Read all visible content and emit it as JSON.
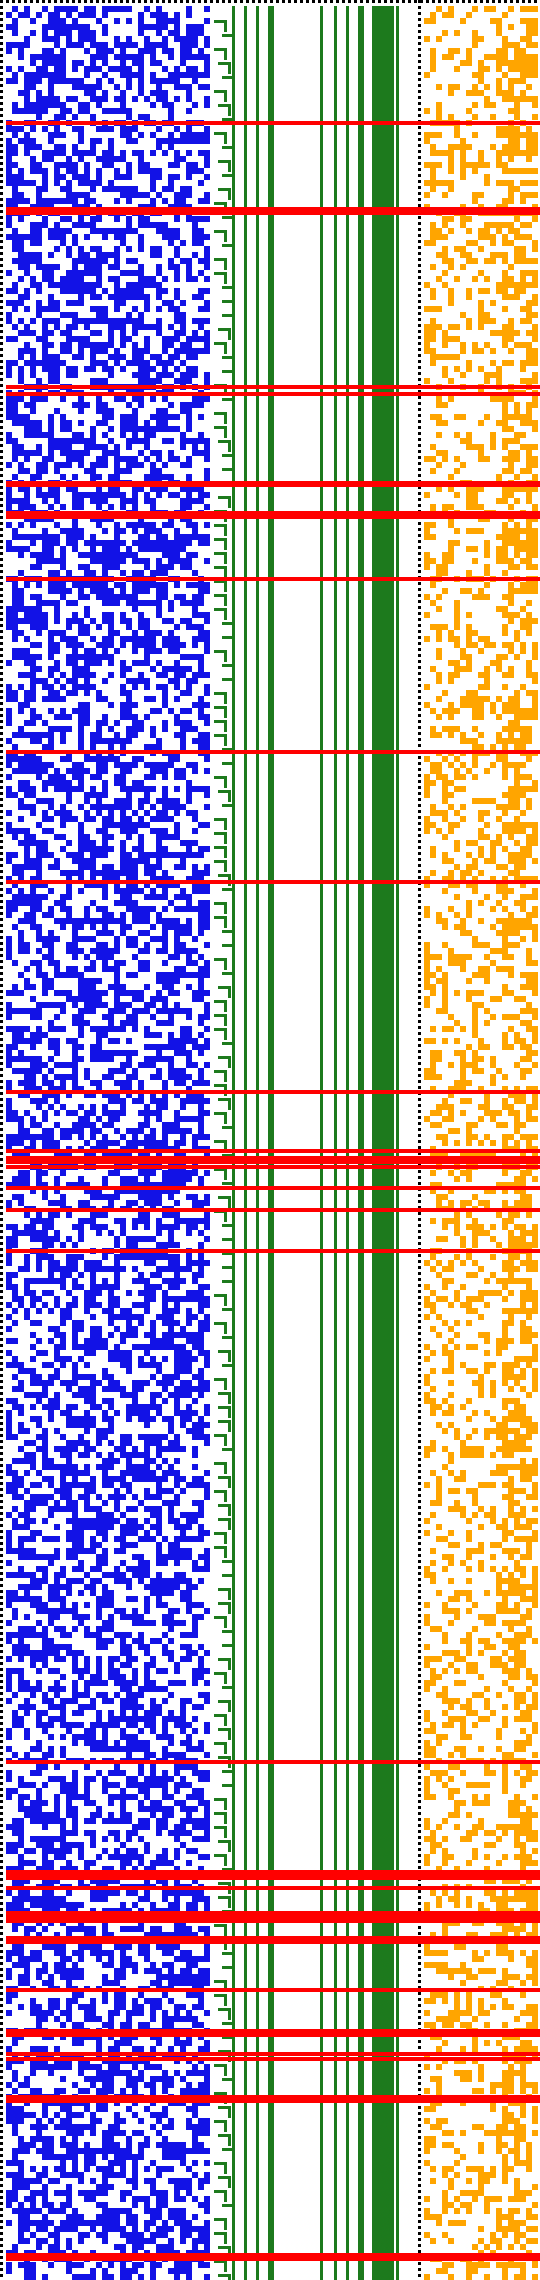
{
  "colors": {
    "background": "#ffffff",
    "cell": "#1212e6",
    "branch": "#1d7a1d",
    "highlight": "#ff0000",
    "trace": "#ffa500",
    "border": "#000000"
  },
  "highlight_rows_fraction": [
    0.053,
    0.091,
    0.169,
    0.172,
    0.211,
    0.212,
    0.224,
    0.253,
    0.329,
    0.386,
    0.478,
    0.504,
    0.507,
    0.511,
    0.52,
    0.53,
    0.548,
    0.772,
    0.82,
    0.823,
    0.827,
    0.838,
    0.84,
    0.849,
    0.872,
    0.89,
    0.9,
    0.902,
    0.919,
    0.988
  ],
  "branch_columns": 8
}
